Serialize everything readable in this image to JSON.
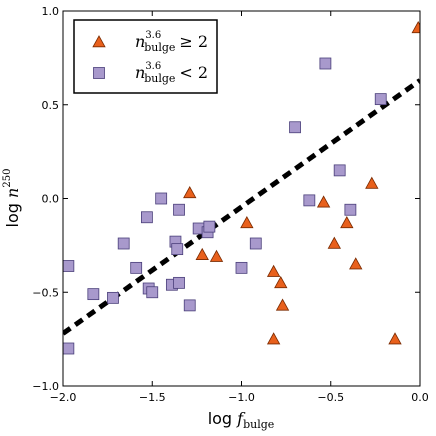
{
  "chart_data": {
    "type": "scatter",
    "xlabel": "log f_bulge",
    "ylabel": "log n^250",
    "xlim": [
      -2.0,
      0.0
    ],
    "ylim": [
      -1.0,
      1.0
    ],
    "xticks": [
      -2.0,
      -1.5,
      -1.0,
      -0.5,
      0.0
    ],
    "yticks": [
      -1.0,
      -0.5,
      0.0,
      0.5,
      1.0
    ],
    "xtick_labels": [
      "−2.0",
      "−1.5",
      "−1.0",
      "−0.5",
      "0.0"
    ],
    "ytick_labels": [
      "−1.0",
      "−0.5",
      "0.0",
      "0.5",
      "1.0"
    ],
    "legend_position": "top-left",
    "series": [
      {
        "name": "n_bulge^3.6 ≥ 2",
        "legend": {
          "sym": "n",
          "sub": "bulge",
          "sup": "3.6",
          "rel": "≥ 2"
        },
        "marker": "triangle",
        "color": "#e8601c",
        "edge": "#7a2a00",
        "points": [
          [
            -1.29,
            0.03
          ],
          [
            -1.22,
            -0.3
          ],
          [
            -1.14,
            -0.31
          ],
          [
            -0.97,
            -0.13
          ],
          [
            -0.82,
            -0.39
          ],
          [
            -0.78,
            -0.45
          ],
          [
            -0.77,
            -0.57
          ],
          [
            -0.82,
            -0.75
          ],
          [
            -0.54,
            -0.02
          ],
          [
            -0.48,
            -0.24
          ],
          [
            -0.41,
            -0.13
          ],
          [
            -0.36,
            -0.35
          ],
          [
            -0.27,
            0.08
          ],
          [
            -0.14,
            -0.75
          ],
          [
            -0.01,
            0.91
          ]
        ]
      },
      {
        "name": "n_bulge^3.6 < 2",
        "legend": {
          "sym": "n",
          "sub": "bulge",
          "sup": "3.6",
          "rel": "< 2"
        },
        "marker": "square",
        "color": "#a899cc",
        "edge": "#4a3f7a",
        "points": [
          [
            -1.97,
            -0.36
          ],
          [
            -1.97,
            -0.8
          ],
          [
            -1.83,
            -0.51
          ],
          [
            -1.72,
            -0.53
          ],
          [
            -1.66,
            -0.24
          ],
          [
            -1.59,
            -0.37
          ],
          [
            -1.53,
            -0.1
          ],
          [
            -1.52,
            -0.48
          ],
          [
            -1.5,
            -0.5
          ],
          [
            -1.45,
            0.0
          ],
          [
            -1.39,
            -0.46
          ],
          [
            -1.37,
            -0.23
          ],
          [
            -1.36,
            -0.27
          ],
          [
            -1.35,
            -0.06
          ],
          [
            -1.35,
            -0.45
          ],
          [
            -1.29,
            -0.57
          ],
          [
            -1.24,
            -0.16
          ],
          [
            -1.19,
            -0.18
          ],
          [
            -1.18,
            -0.15
          ],
          [
            -1.0,
            -0.37
          ],
          [
            -0.92,
            -0.24
          ],
          [
            -0.7,
            0.38
          ],
          [
            -0.62,
            -0.01
          ],
          [
            -0.53,
            0.72
          ],
          [
            -0.45,
            0.15
          ],
          [
            -0.39,
            -0.06
          ],
          [
            -0.22,
            0.53
          ]
        ]
      }
    ],
    "fit_line": {
      "style": "dashed",
      "color": "#000000",
      "x": [
        -2.0,
        0.0
      ],
      "y": [
        -0.72,
        0.63
      ]
    }
  }
}
